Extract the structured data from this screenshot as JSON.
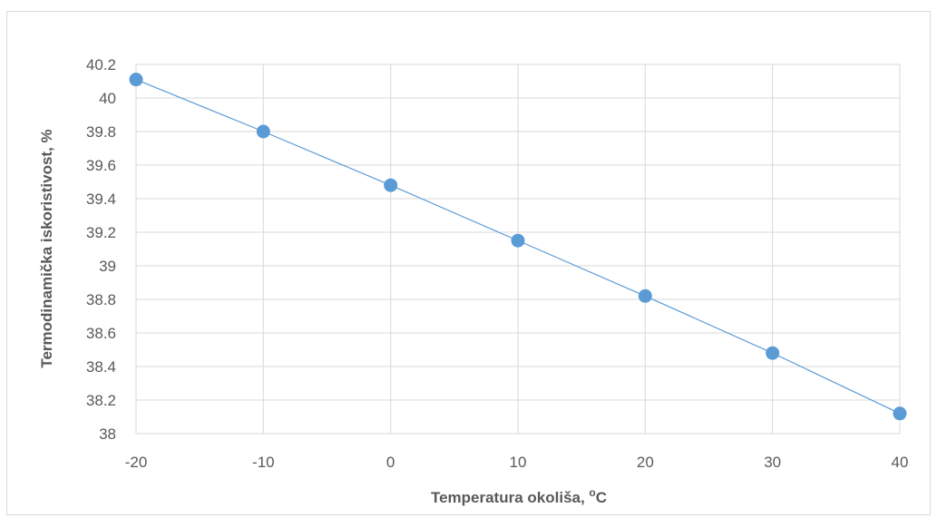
{
  "chart_data": {
    "type": "scatter",
    "title": "",
    "xlabel": "Temperatura okoliša, ",
    "xlabel_sup": "o",
    "xlabel_unit": "C",
    "ylabel": "Termodinamička iskoristivost, %",
    "xlim": [
      -20,
      40
    ],
    "ylim": [
      38,
      40.2
    ],
    "x_ticks": [
      -20,
      -10,
      0,
      10,
      20,
      30,
      40
    ],
    "y_ticks": [
      38,
      38.2,
      38.4,
      38.6,
      38.8,
      39,
      39.2,
      39.4,
      39.6,
      39.8,
      40,
      40.2
    ],
    "x_tick_labels": [
      "-20",
      "-10",
      "0",
      "10",
      "20",
      "30",
      "40"
    ],
    "y_tick_labels": [
      "38",
      "38.2",
      "38.4",
      "38.6",
      "38.8",
      "39",
      "39.2",
      "39.4",
      "39.6",
      "39.8",
      "40",
      "40.2"
    ],
    "grid": true,
    "legend": "none",
    "series": [
      {
        "x": [
          -20,
          -10,
          0,
          10,
          20,
          30,
          40
        ],
        "y": [
          40.11,
          39.8,
          39.48,
          39.15,
          38.82,
          38.48,
          38.12
        ],
        "marker_color": "#5b9bd5",
        "line_color": "#5b9bd5"
      }
    ]
  }
}
